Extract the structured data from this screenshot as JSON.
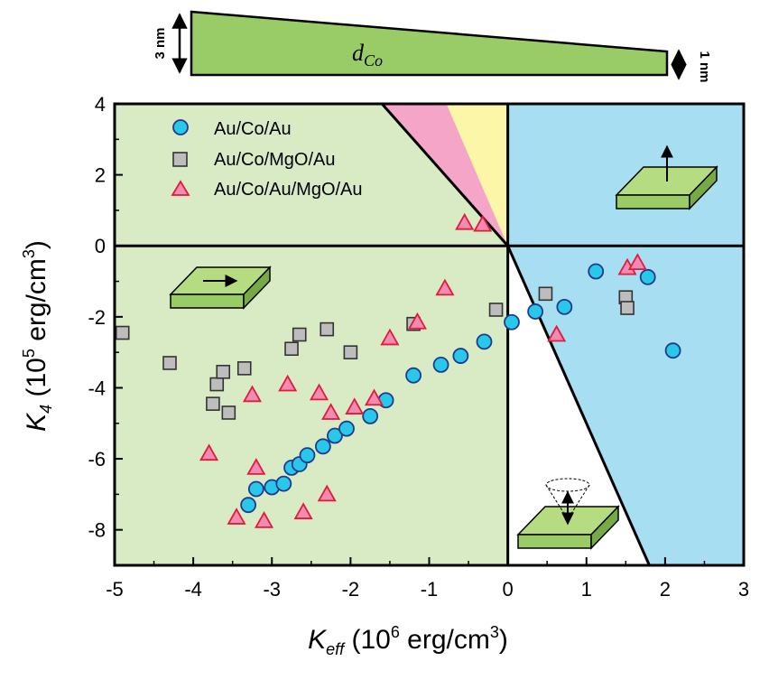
{
  "colors": {
    "in_plane_region": "#d9ebc5",
    "perpendicular_region": "#a7def2",
    "pink_region": "#f5a6c8",
    "yellow_region": "#fbf6a8",
    "film_green": "#99cc66",
    "circle_fill": "#29c7ea",
    "square_fill": "#bdbdbd",
    "triangle_fill": "#f28ab2",
    "triangle_stroke": "#e01b3c"
  },
  "wedge": {
    "label": "d",
    "label_sub": "Co",
    "left_thickness": "3 nm",
    "right_thickness": "1 nm"
  },
  "chart_data": {
    "type": "scatter",
    "title": "",
    "xlabel": "K",
    "xlabel_sub": "eff",
    "xlabel_unit_prefix": " (10",
    "xlabel_unit_exp": "6",
    "xlabel_unit_suffix": " erg/cm",
    "xlabel_unit_exp2": "3",
    "xlabel_unit_close": ")",
    "ylabel": "K",
    "ylabel_sub": "4",
    "ylabel_unit_prefix": " (10",
    "ylabel_unit_exp": "5",
    "ylabel_unit_suffix": " erg/cm",
    "ylabel_unit_exp2": "3",
    "ylabel_unit_close": ")",
    "xlim": [
      -5,
      3
    ],
    "ylim": [
      -9,
      4
    ],
    "x_ticks": [
      -5,
      -4,
      -3,
      -2,
      -1,
      0,
      1,
      2,
      3
    ],
    "x_tick_labels": [
      "-5",
      "-4",
      "-3",
      "-2",
      "-1",
      "0",
      "1",
      "2",
      "3"
    ],
    "y_ticks": [
      4,
      2,
      0,
      -2,
      -4,
      -6,
      -8
    ],
    "y_tick_labels": [
      "4",
      "2",
      "0",
      "-2",
      "-4",
      "-6",
      "-8"
    ],
    "boundary_lines": [
      {
        "x1": -1.6,
        "y1": 4,
        "x2": 0,
        "y2": 0
      },
      {
        "x1": 0,
        "y1": 0,
        "x2": 1.8,
        "y2": -9
      }
    ],
    "legend_position": "top-left",
    "series": [
      {
        "name": "Au/Co/Au",
        "marker": "circle",
        "points": [
          [
            -3.3,
            -7.3
          ],
          [
            -3.2,
            -6.85
          ],
          [
            -3.0,
            -6.8
          ],
          [
            -2.85,
            -6.7
          ],
          [
            -2.75,
            -6.25
          ],
          [
            -2.65,
            -6.15
          ],
          [
            -2.55,
            -5.9
          ],
          [
            -2.35,
            -5.65
          ],
          [
            -2.2,
            -5.35
          ],
          [
            -2.05,
            -5.15
          ],
          [
            -1.75,
            -4.8
          ],
          [
            -1.55,
            -4.35
          ],
          [
            -1.2,
            -3.65
          ],
          [
            -0.85,
            -3.35
          ],
          [
            -0.6,
            -3.1
          ],
          [
            -0.3,
            -2.7
          ],
          [
            0.05,
            -2.15
          ],
          [
            0.35,
            -1.85
          ],
          [
            0.72,
            -1.72
          ],
          [
            1.12,
            -0.72
          ],
          [
            1.78,
            -0.88
          ],
          [
            2.1,
            -2.95
          ]
        ]
      },
      {
        "name": "Au/Co/MgO/Au",
        "marker": "square",
        "points": [
          [
            -4.9,
            -2.45
          ],
          [
            -4.3,
            -3.3
          ],
          [
            -3.75,
            -4.45
          ],
          [
            -3.7,
            -3.9
          ],
          [
            -3.62,
            -3.55
          ],
          [
            -3.55,
            -4.7
          ],
          [
            -3.35,
            -3.45
          ],
          [
            -2.75,
            -2.9
          ],
          [
            -2.65,
            -2.5
          ],
          [
            -2.3,
            -2.35
          ],
          [
            -2.0,
            -3.0
          ],
          [
            -1.2,
            -2.2
          ],
          [
            -0.15,
            -1.8
          ],
          [
            0.48,
            -1.35
          ],
          [
            1.5,
            -1.45
          ],
          [
            1.52,
            -1.75
          ]
        ]
      },
      {
        "name": "Au/Co/Au/MgO/Au",
        "marker": "triangle",
        "points": [
          [
            -3.8,
            -5.85
          ],
          [
            -3.45,
            -7.65
          ],
          [
            -3.25,
            -4.2
          ],
          [
            -3.2,
            -6.25
          ],
          [
            -3.1,
            -7.75
          ],
          [
            -2.8,
            -3.9
          ],
          [
            -2.6,
            -7.5
          ],
          [
            -2.4,
            -4.15
          ],
          [
            -2.3,
            -7.0
          ],
          [
            -2.25,
            -4.7
          ],
          [
            -1.95,
            -4.55
          ],
          [
            -1.7,
            -4.3
          ],
          [
            -1.5,
            -2.6
          ],
          [
            -1.15,
            -2.15
          ],
          [
            -0.8,
            -1.2
          ],
          [
            -0.55,
            0.65
          ],
          [
            -0.32,
            0.6
          ],
          [
            0.62,
            -2.5
          ],
          [
            1.52,
            -0.62
          ],
          [
            1.65,
            -0.48
          ]
        ]
      }
    ]
  }
}
